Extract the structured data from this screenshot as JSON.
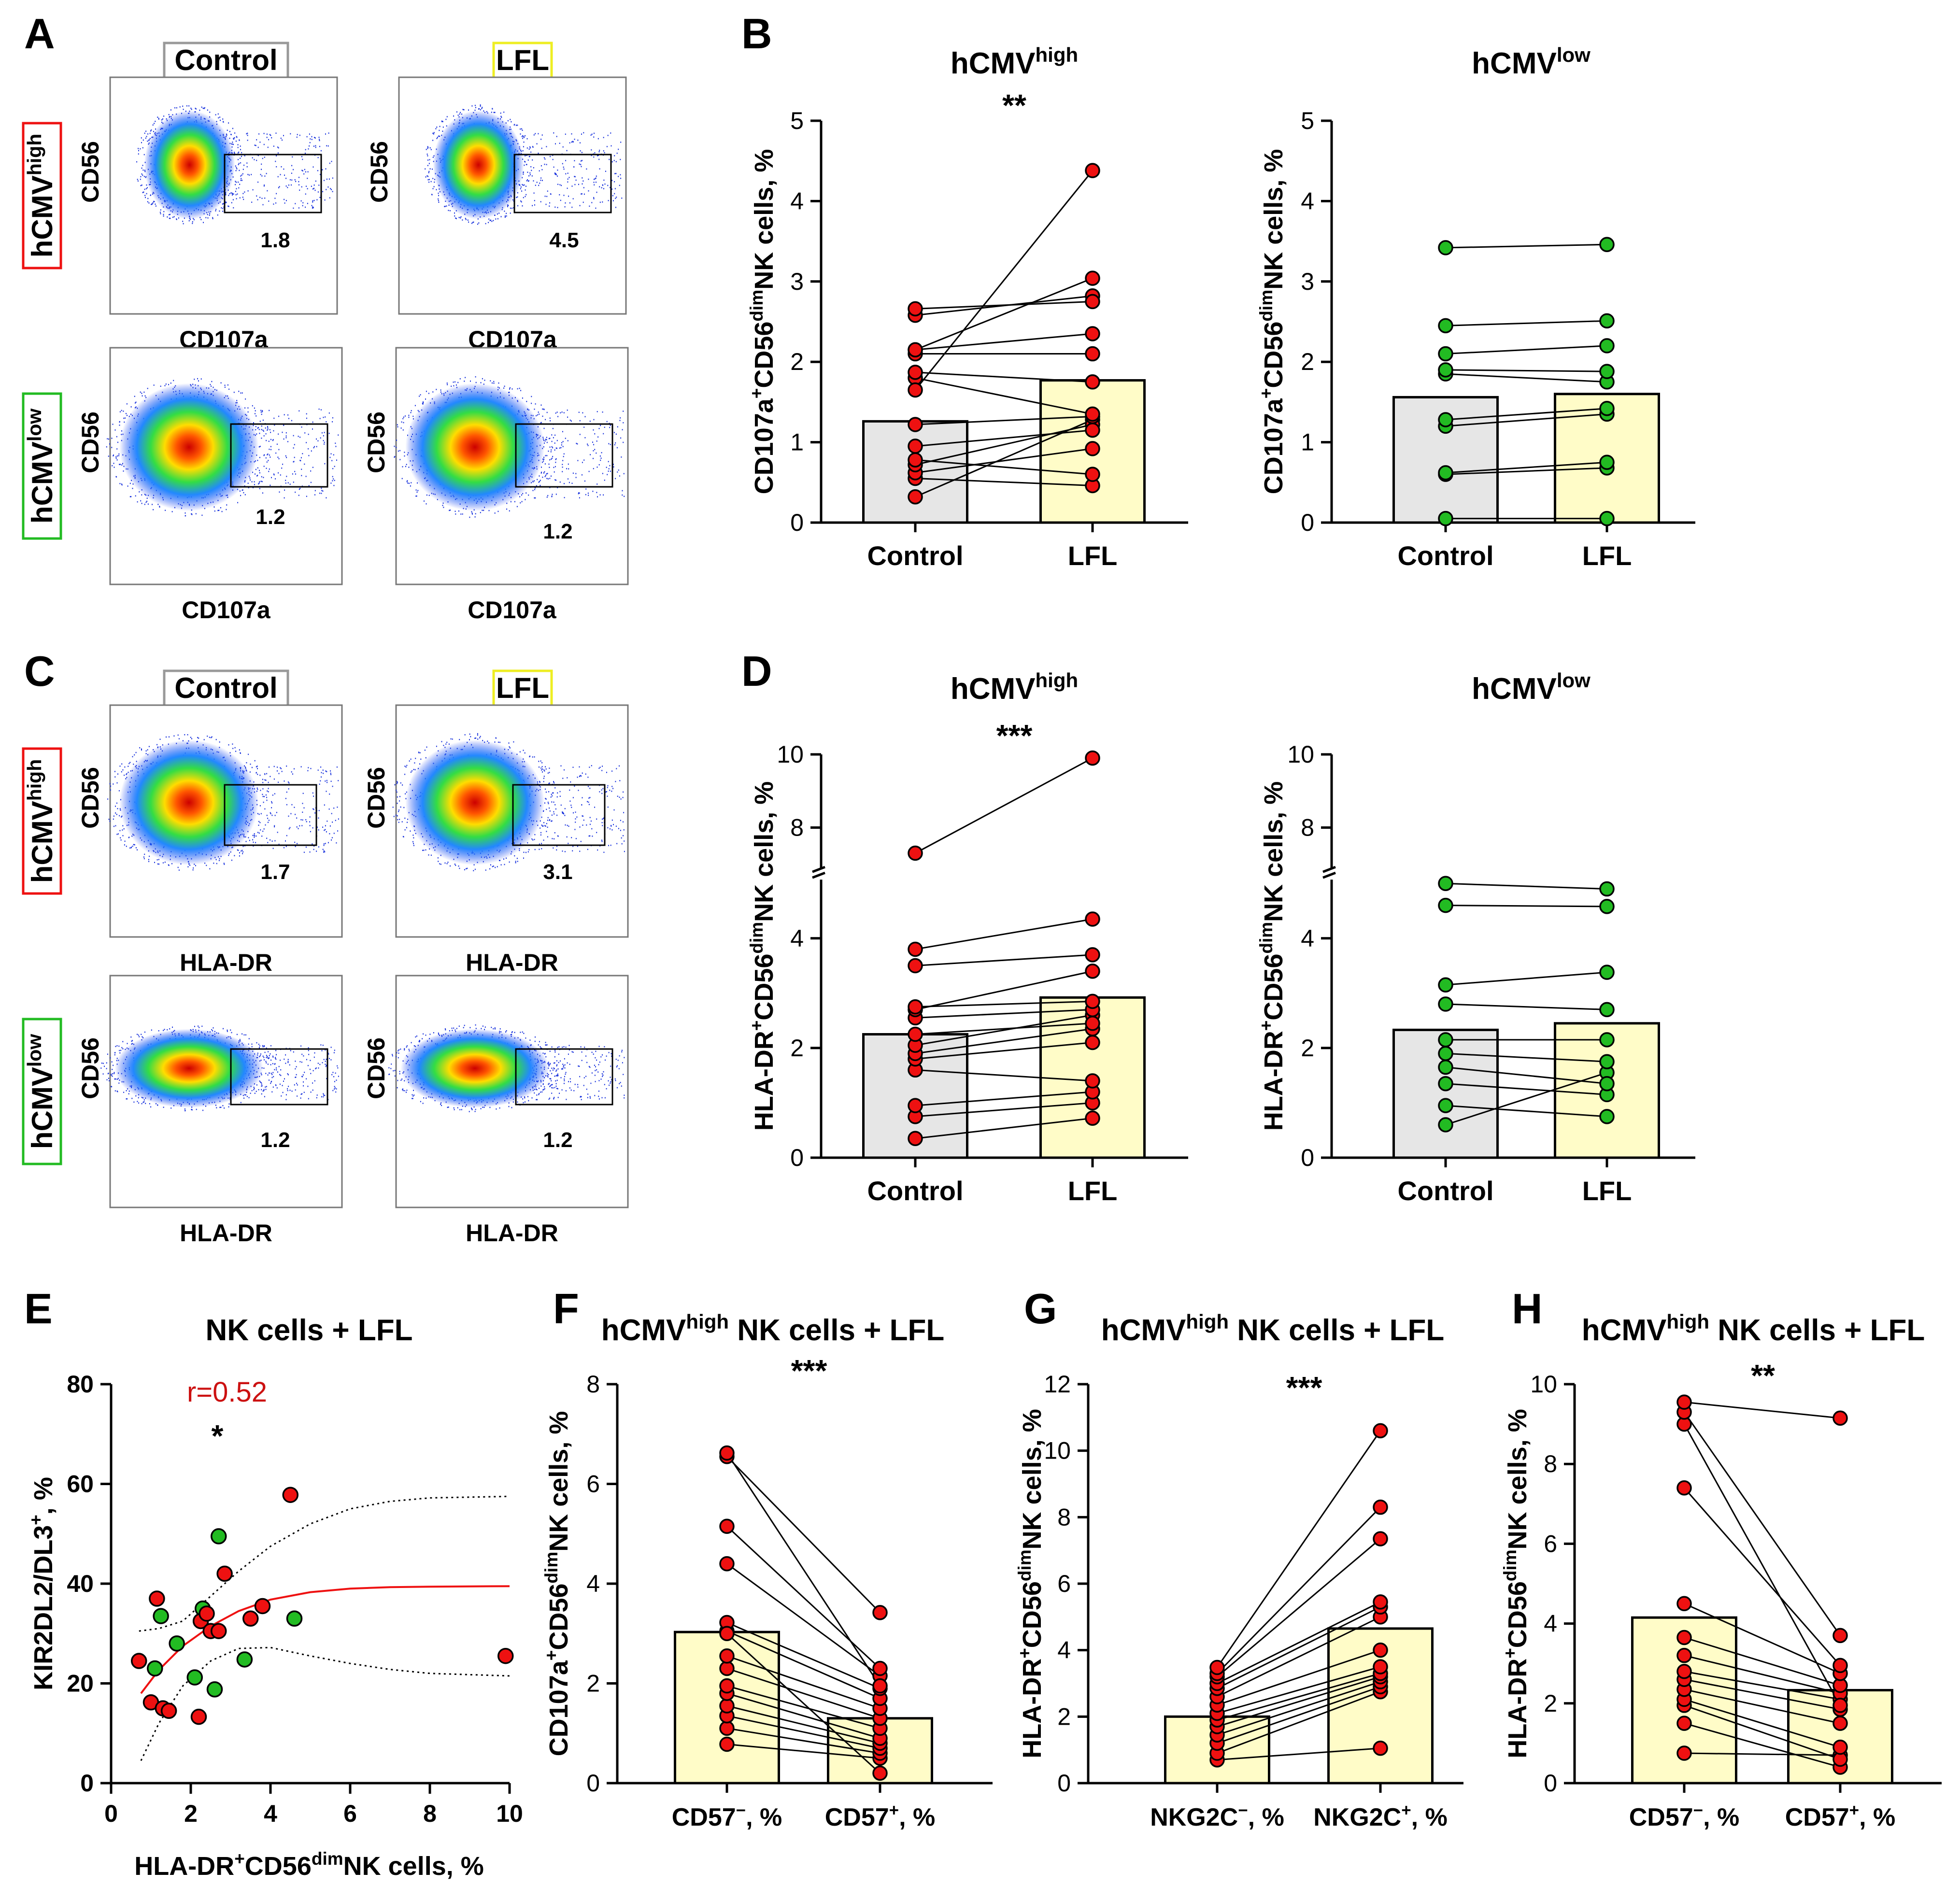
{
  "colors": {
    "bar_control": "#e6e6e6",
    "bar_lfl": "#fffcc8",
    "pt_red": "#ee1111",
    "pt_green": "#22bb22",
    "box_red": "#ee1111",
    "box_green": "#22bb22",
    "box_gray": "#999999",
    "box_yellow": "#eeee22",
    "corr_text": "#cc1111"
  },
  "panels": {
    "A": {
      "letter": "A",
      "col_control": "Control",
      "col_lfl": "LFL",
      "row_high": {
        "base": "hCMV",
        "sup": "high"
      },
      "row_low": {
        "base": "hCMV",
        "sup": "low"
      },
      "ylabel": "CD56",
      "xlabel": "CD107a",
      "gates": [
        "1.8",
        "4.5",
        "1.2",
        "1.2"
      ]
    },
    "C": {
      "letter": "C",
      "col_control": "Control",
      "col_lfl": "LFL",
      "row_high": {
        "base": "hCMV",
        "sup": "high"
      },
      "row_low": {
        "base": "hCMV",
        "sup": "low"
      },
      "ylabel": "CD56",
      "xlabel": "HLA-DR",
      "gates": [
        "1.7",
        "3.1",
        "1.2",
        "1.2"
      ]
    },
    "B": {
      "letter": "B"
    },
    "D": {
      "letter": "D"
    },
    "E": {
      "letter": "E"
    },
    "F": {
      "letter": "F"
    },
    "G": {
      "letter": "G"
    },
    "H": {
      "letter": "H"
    }
  },
  "chart_data": [
    {
      "id": "B1",
      "type": "bar",
      "title": {
        "base": "hCMV",
        "sup": "high"
      },
      "sig": "**",
      "ylabel": {
        "p1": "CD107a",
        "s1": "+",
        "p2": "CD56",
        "s2": "dim",
        "p3": "NK cells, %"
      },
      "categories": [
        "Control",
        "LFL"
      ],
      "bar_values": [
        1.26,
        1.77
      ],
      "ylim": [
        0,
        5
      ],
      "yticks": [
        "0",
        "1",
        "2",
        "3",
        "4",
        "5"
      ],
      "ytick_vals": [
        0,
        1,
        2,
        3,
        4,
        5
      ],
      "point_color": "red",
      "pairs": [
        [
          0.32,
          1.28
        ],
        [
          0.55,
          0.46
        ],
        [
          0.62,
          0.92
        ],
        [
          0.72,
          1.22
        ],
        [
          0.78,
          0.6
        ],
        [
          0.95,
          1.15
        ],
        [
          1.22,
          1.32
        ],
        [
          1.8,
          1.35
        ],
        [
          1.87,
          1.75
        ],
        [
          2.1,
          2.1
        ],
        [
          2.15,
          2.35
        ],
        [
          2.58,
          2.82
        ],
        [
          2.66,
          2.75
        ],
        [
          2.15,
          3.04
        ],
        [
          1.65,
          4.38
        ]
      ]
    },
    {
      "id": "B2",
      "type": "bar",
      "title": {
        "base": "hCMV",
        "sup": "low"
      },
      "sig": "",
      "ylabel": {
        "p1": "CD107a",
        "s1": "+",
        "p2": "CD56",
        "s2": "dim",
        "p3": "NK cells, %"
      },
      "categories": [
        "Control",
        "LFL"
      ],
      "bar_values": [
        1.56,
        1.6
      ],
      "ylim": [
        0,
        5
      ],
      "yticks": [
        "0",
        "1",
        "2",
        "3",
        "4",
        "5"
      ],
      "ytick_vals": [
        0,
        1,
        2,
        3,
        4,
        5
      ],
      "point_color": "green",
      "pairs": [
        [
          0.05,
          0.05
        ],
        [
          0.6,
          0.68
        ],
        [
          0.62,
          0.75
        ],
        [
          1.2,
          1.35
        ],
        [
          1.28,
          1.42
        ],
        [
          1.85,
          1.75
        ],
        [
          1.9,
          1.88
        ],
        [
          2.1,
          2.2
        ],
        [
          2.45,
          2.51
        ],
        [
          3.42,
          3.46
        ]
      ]
    },
    {
      "id": "D1",
      "type": "bar",
      "title": {
        "base": "hCMV",
        "sup": "high"
      },
      "sig": "***",
      "ylabel": {
        "p1": "HLA-DR",
        "s1": "+",
        "p2": "CD56",
        "s2": "dim",
        "p3": "NK cells, %"
      },
      "categories": [
        "Control",
        "LFL"
      ],
      "bar_values": [
        2.25,
        2.92
      ],
      "ylim": [
        0,
        10
      ],
      "axis_break": [
        5,
        7
      ],
      "yticks": [
        "0",
        "2",
        "4",
        "8",
        "10"
      ],
      "ytick_vals": [
        0,
        2,
        4,
        8,
        10
      ],
      "point_color": "red",
      "pairs": [
        [
          0.35,
          0.72
        ],
        [
          0.75,
          1.0
        ],
        [
          0.95,
          1.2
        ],
        [
          1.6,
          1.4
        ],
        [
          1.8,
          2.1
        ],
        [
          1.9,
          2.35
        ],
        [
          2.05,
          2.6
        ],
        [
          2.25,
          2.45
        ],
        [
          2.55,
          2.7
        ],
        [
          2.7,
          3.4
        ],
        [
          2.75,
          2.85
        ],
        [
          3.5,
          3.7
        ],
        [
          3.8,
          4.35
        ],
        [
          7.3,
          9.9
        ]
      ]
    },
    {
      "id": "D2",
      "type": "bar",
      "title": {
        "base": "hCMV",
        "sup": "low"
      },
      "sig": "",
      "ylabel": {
        "p1": "HLA-DR",
        "s1": "+",
        "p2": "CD56",
        "s2": "dim",
        "p3": "NK cells, %"
      },
      "categories": [
        "Control",
        "LFL"
      ],
      "bar_values": [
        2.33,
        2.45
      ],
      "ylim": [
        0,
        10
      ],
      "axis_break": [
        5,
        7
      ],
      "yticks": [
        "0",
        "2",
        "4",
        "8",
        "10"
      ],
      "ytick_vals": [
        0,
        2,
        4,
        8,
        10
      ],
      "point_color": "green",
      "pairs": [
        [
          0.6,
          1.55
        ],
        [
          0.95,
          0.75
        ],
        [
          1.35,
          1.15
        ],
        [
          1.65,
          1.35
        ],
        [
          1.9,
          1.75
        ],
        [
          2.15,
          2.15
        ],
        [
          2.8,
          2.7
        ],
        [
          3.15,
          3.38
        ],
        [
          4.6,
          4.58
        ],
        [
          5.0,
          4.9
        ]
      ]
    },
    {
      "id": "E",
      "type": "scatter",
      "title": "NK cells + LFL",
      "corr": "r=0.52",
      "sig": "*",
      "xlabel": {
        "p1": "HLA-DR",
        "s1": "+",
        "p2": "CD56",
        "s2": "dim",
        "p3": "NK cells, %"
      },
      "ylabel": {
        "p1": "KIR2DL2/DL3",
        "s1": "+",
        "p2": ", %"
      },
      "xlim": [
        0,
        10
      ],
      "ylim": [
        0,
        80
      ],
      "xticks": [
        "0",
        "2",
        "4",
        "6",
        "8",
        "10"
      ],
      "xtick_vals": [
        0,
        2,
        4,
        6,
        8,
        10
      ],
      "yticks": [
        "0",
        "20",
        "40",
        "60",
        "80"
      ],
      "ytick_vals": [
        0,
        20,
        40,
        60,
        80
      ],
      "red_points": [
        [
          0.7,
          24.5
        ],
        [
          1.0,
          16.2
        ],
        [
          1.15,
          37
        ],
        [
          1.3,
          15
        ],
        [
          1.45,
          14.5
        ],
        [
          2.2,
          13.3
        ],
        [
          2.25,
          32.5
        ],
        [
          2.4,
          34
        ],
        [
          2.5,
          30.5
        ],
        [
          2.7,
          30.5
        ],
        [
          2.85,
          42
        ],
        [
          3.5,
          33
        ],
        [
          3.8,
          35.5
        ],
        [
          4.5,
          57.8
        ],
        [
          9.9,
          25.5
        ]
      ],
      "green_points": [
        [
          1.1,
          23
        ],
        [
          1.25,
          33.5
        ],
        [
          1.65,
          28
        ],
        [
          2.1,
          21.2
        ],
        [
          2.3,
          35
        ],
        [
          2.6,
          18.8
        ],
        [
          2.7,
          49.5
        ],
        [
          3.35,
          24.8
        ],
        [
          4.6,
          33
        ]
      ],
      "fit": [
        [
          0.75,
          18
        ],
        [
          1.2,
          22.7
        ],
        [
          1.8,
          27.5
        ],
        [
          2.5,
          31.5
        ],
        [
          3.2,
          34.5
        ],
        [
          4,
          36.8
        ],
        [
          5,
          38.3
        ],
        [
          6,
          39
        ],
        [
          7,
          39.3
        ],
        [
          8,
          39.4
        ],
        [
          10,
          39.5
        ]
      ],
      "ci_upper": [
        [
          0.7,
          30.5
        ],
        [
          1.2,
          31
        ],
        [
          1.8,
          32.5
        ],
        [
          2.5,
          37.5
        ],
        [
          3.2,
          42.5
        ],
        [
          4,
          47.5
        ],
        [
          5,
          52
        ],
        [
          6,
          55
        ],
        [
          7,
          56.5
        ],
        [
          8,
          57.2
        ],
        [
          10,
          57.5
        ]
      ],
      "ci_lower": [
        [
          0.75,
          4.5
        ],
        [
          1.2,
          12
        ],
        [
          1.8,
          19.5
        ],
        [
          2.5,
          24.5
        ],
        [
          3.2,
          27
        ],
        [
          4,
          27.2
        ],
        [
          5,
          25.5
        ],
        [
          6,
          24
        ],
        [
          7,
          22.8
        ],
        [
          8,
          22
        ],
        [
          10,
          21.5
        ]
      ]
    },
    {
      "id": "F",
      "type": "bar",
      "title": {
        "base": "hCMV",
        "sup": "high",
        "rest": " NK cells + LFL"
      },
      "sig": "***",
      "ylabel": {
        "p1": "CD107a",
        "s1": "+",
        "p2": "CD56",
        "s2": "dim",
        "p3": "NK cells, %"
      },
      "categories": [
        {
          "base": "CD57",
          "sup": "−",
          "rest": ", %"
        },
        {
          "base": "CD57",
          "sup": "+",
          "rest": ", %"
        }
      ],
      "bar_values": [
        3.03,
        1.3
      ],
      "ylim": [
        0,
        8
      ],
      "yticks": [
        "0",
        "2",
        "4",
        "6",
        "8"
      ],
      "ytick_vals": [
        0,
        2,
        4,
        6,
        8
      ],
      "point_color": "red",
      "pairs": [
        [
          0.78,
          0.5
        ],
        [
          1.1,
          0.6
        ],
        [
          1.35,
          0.7
        ],
        [
          1.55,
          0.8
        ],
        [
          1.8,
          0.9
        ],
        [
          1.95,
          1.1
        ],
        [
          2.3,
          1.3
        ],
        [
          2.55,
          1.5
        ],
        [
          3.05,
          1.7
        ],
        [
          3.22,
          1.9
        ],
        [
          4.4,
          2.15
        ],
        [
          5.15,
          2.3
        ],
        [
          6.55,
          3.42
        ],
        [
          6.62,
          1.95
        ],
        [
          3.0,
          0.2
        ]
      ]
    },
    {
      "id": "G",
      "type": "bar",
      "title": {
        "base": "hCMV",
        "sup": "high",
        "rest": " NK cells + LFL"
      },
      "sig": "***",
      "ylabel": {
        "p1": "HLA-DR",
        "s1": "+",
        "p2": "CD56",
        "s2": "dim",
        "p3": "NK cells, %"
      },
      "categories": [
        {
          "base": "NKG2C",
          "sup": "−",
          "rest": ", %"
        },
        {
          "base": "NKG2C",
          "sup": "+",
          "rest": ", %"
        }
      ],
      "bar_values": [
        2.0,
        4.65
      ],
      "ylim": [
        0,
        12
      ],
      "yticks": [
        "0",
        "2",
        "4",
        "6",
        "8",
        "10",
        "12"
      ],
      "ytick_vals": [
        0,
        2,
        4,
        6,
        8,
        10,
        12
      ],
      "point_color": "red",
      "pairs": [
        [
          0.7,
          1.05
        ],
        [
          0.9,
          2.75
        ],
        [
          1.2,
          2.9
        ],
        [
          1.45,
          3.05
        ],
        [
          1.7,
          3.2
        ],
        [
          1.9,
          3.3
        ],
        [
          2.1,
          3.5
        ],
        [
          2.35,
          4.0
        ],
        [
          2.6,
          5.0
        ],
        [
          2.85,
          5.3
        ],
        [
          3.0,
          5.45
        ],
        [
          3.2,
          7.35
        ],
        [
          3.3,
          8.3
        ],
        [
          3.48,
          10.6
        ]
      ]
    },
    {
      "id": "H",
      "type": "bar",
      "title": {
        "base": "hCMV",
        "sup": "high",
        "rest": " NK cells + LFL"
      },
      "sig": "**",
      "ylabel": {
        "p1": "HLA-DR",
        "s1": "+",
        "p2": "CD56",
        "s2": "dim",
        "p3": "NK cells, %"
      },
      "categories": [
        {
          "base": "CD57",
          "sup": "−",
          "rest": ", %"
        },
        {
          "base": "CD57",
          "sup": "+",
          "rest": ", %"
        }
      ],
      "bar_values": [
        4.15,
        2.33
      ],
      "ylim": [
        0,
        10
      ],
      "yticks": [
        "0",
        "2",
        "4",
        "6",
        "8",
        "10"
      ],
      "ytick_vals": [
        0,
        2,
        4,
        6,
        8,
        10
      ],
      "point_color": "red",
      "pairs": [
        [
          0.75,
          0.7
        ],
        [
          1.5,
          0.4
        ],
        [
          1.95,
          0.6
        ],
        [
          2.1,
          0.9
        ],
        [
          2.35,
          1.5
        ],
        [
          2.6,
          1.85
        ],
        [
          2.8,
          2.1
        ],
        [
          3.2,
          2.25
        ],
        [
          3.65,
          2.45
        ],
        [
          4.5,
          2.75
        ],
        [
          7.4,
          2.95
        ],
        [
          9.0,
          1.95
        ],
        [
          9.3,
          3.7
        ],
        [
          9.55,
          9.15
        ]
      ]
    }
  ]
}
